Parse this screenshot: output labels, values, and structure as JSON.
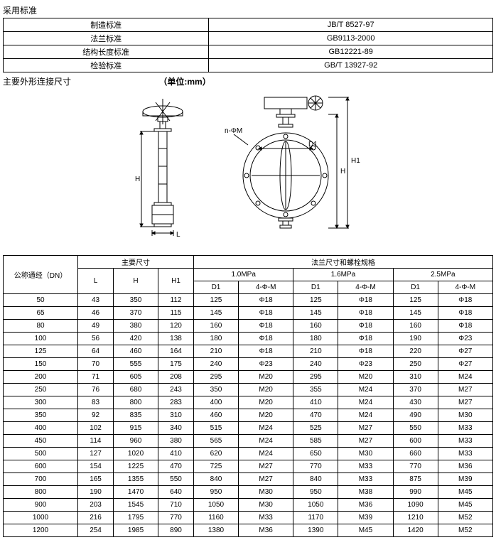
{
  "section1_title": "采用标准",
  "standards": {
    "rows": [
      {
        "label": "制造标准",
        "value": "JB/T 8527-97"
      },
      {
        "label": "法兰标准",
        "value": "GB9113-2000"
      },
      {
        "label": "结构长度标准",
        "value": "GB12221-89"
      },
      {
        "label": "检验标准",
        "value": "GB/T 13927-92"
      }
    ]
  },
  "section2_title": "主要外形连接尺寸",
  "section2_unit": "（单位:mm）",
  "spec_header": {
    "dn": "公称通经（DN）",
    "main_dim": "主要尺寸",
    "flange": "法兰尺寸和螺栓规格",
    "L": "L",
    "H": "H",
    "H1": "H1",
    "p1": "1.0MPa",
    "p2": "1.6MPa",
    "p3": "2.5MPa",
    "D1": "D1",
    "bolt": "4-Φ-M"
  },
  "spec_rows": [
    [
      "50",
      "43",
      "350",
      "112",
      "125",
      "Φ18",
      "125",
      "Φ18",
      "125",
      "Φ18"
    ],
    [
      "65",
      "46",
      "370",
      "115",
      "145",
      "Φ18",
      "145",
      "Φ18",
      "145",
      "Φ18"
    ],
    [
      "80",
      "49",
      "380",
      "120",
      "160",
      "Φ18",
      "160",
      "Φ18",
      "160",
      "Φ18"
    ],
    [
      "100",
      "56",
      "420",
      "138",
      "180",
      "Φ18",
      "180",
      "Φ18",
      "190",
      "Φ23"
    ],
    [
      "125",
      "64",
      "460",
      "164",
      "210",
      "Φ18",
      "210",
      "Φ18",
      "220",
      "Φ27"
    ],
    [
      "150",
      "70",
      "555",
      "175",
      "240",
      "Φ23",
      "240",
      "Φ23",
      "250",
      "Φ27"
    ],
    [
      "200",
      "71",
      "605",
      "208",
      "295",
      "M20",
      "295",
      "M20",
      "310",
      "M24"
    ],
    [
      "250",
      "76",
      "680",
      "243",
      "350",
      "M20",
      "355",
      "M24",
      "370",
      "M27"
    ],
    [
      "300",
      "83",
      "800",
      "283",
      "400",
      "M20",
      "410",
      "M24",
      "430",
      "M27"
    ],
    [
      "350",
      "92",
      "835",
      "310",
      "460",
      "M20",
      "470",
      "M24",
      "490",
      "M30"
    ],
    [
      "400",
      "102",
      "915",
      "340",
      "515",
      "M24",
      "525",
      "M27",
      "550",
      "M33"
    ],
    [
      "450",
      "114",
      "960",
      "380",
      "565",
      "M24",
      "585",
      "M27",
      "600",
      "M33"
    ],
    [
      "500",
      "127",
      "1020",
      "410",
      "620",
      "M24",
      "650",
      "M30",
      "660",
      "M33"
    ],
    [
      "600",
      "154",
      "1225",
      "470",
      "725",
      "M27",
      "770",
      "M33",
      "770",
      "M36"
    ],
    [
      "700",
      "165",
      "1355",
      "550",
      "840",
      "M27",
      "840",
      "M33",
      "875",
      "M39"
    ],
    [
      "800",
      "190",
      "1470",
      "640",
      "950",
      "M30",
      "950",
      "M38",
      "990",
      "M45"
    ],
    [
      "900",
      "203",
      "1545",
      "710",
      "1050",
      "M30",
      "1050",
      "M36",
      "1090",
      "M45"
    ],
    [
      "1000",
      "216",
      "1795",
      "770",
      "1160",
      "M33",
      "1170",
      "M39",
      "1210",
      "M52"
    ],
    [
      "1200",
      "254",
      "1985",
      "890",
      "1380",
      "M36",
      "1390",
      "M45",
      "1420",
      "M52"
    ]
  ],
  "diagram_labels": {
    "H": "H",
    "H1": "H1",
    "D1": "D1",
    "L": "L",
    "nphi": "n-ΦM"
  }
}
